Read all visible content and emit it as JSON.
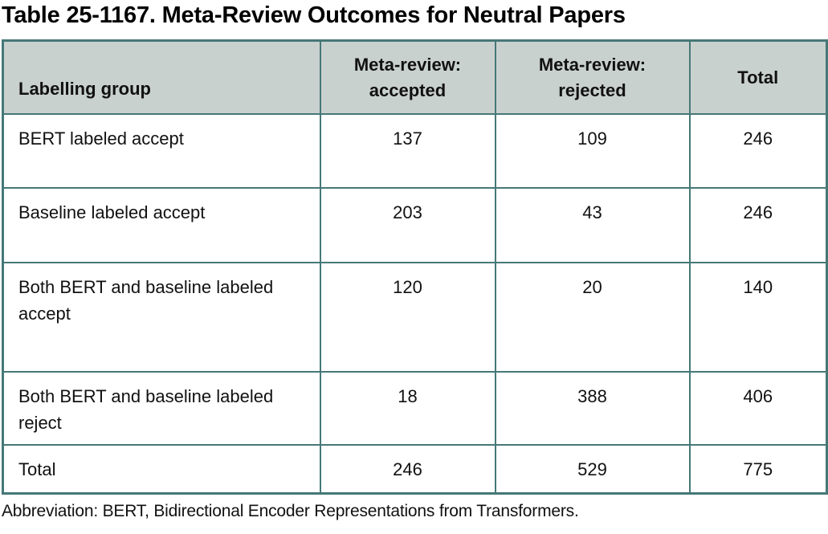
{
  "title": "Table 25-1167. Meta-Review Outcomes for Neutral Papers",
  "table": {
    "columns": {
      "labelling_group": "Labelling group",
      "accepted": "Meta-review:\naccepted",
      "rejected": "Meta-review:\nrejected",
      "total": "Total"
    },
    "rows": [
      {
        "label": "BERT labeled accept",
        "accepted": "137",
        "rejected": "109",
        "total": "246"
      },
      {
        "label": "Baseline labeled accept",
        "accepted": "203",
        "rejected": "43",
        "total": "246"
      },
      {
        "label": "Both BERT and baseline labeled accept",
        "accepted": "120",
        "rejected": "20",
        "total": "140"
      },
      {
        "label": "Both BERT and baseline labeled reject",
        "accepted": "18",
        "rejected": "388",
        "total": "406"
      }
    ],
    "total_row": {
      "label": "Total",
      "accepted": "246",
      "rejected": "529",
      "total": "775"
    }
  },
  "footnote": "Abbreviation: BERT, Bidirectional Encoder Representations from Transformers.",
  "colors": {
    "border": "#457877",
    "header_background": "#c9d1ce",
    "text": "#111111",
    "page_background": "#ffffff"
  },
  "chart_data": {
    "type": "table",
    "title": "Table 25-1167. Meta-Review Outcomes for Neutral Papers",
    "columns": [
      "Labelling group",
      "Meta-review: accepted",
      "Meta-review: rejected",
      "Total"
    ],
    "rows": [
      [
        "BERT labeled accept",
        137,
        109,
        246
      ],
      [
        "Baseline labeled accept",
        203,
        43,
        246
      ],
      [
        "Both BERT and baseline labeled accept",
        120,
        20,
        140
      ],
      [
        "Both BERT and baseline labeled reject",
        18,
        388,
        406
      ],
      [
        "Total",
        246,
        529,
        775
      ]
    ],
    "footnote": "Abbreviation: BERT, Bidirectional Encoder Representations from Transformers."
  }
}
